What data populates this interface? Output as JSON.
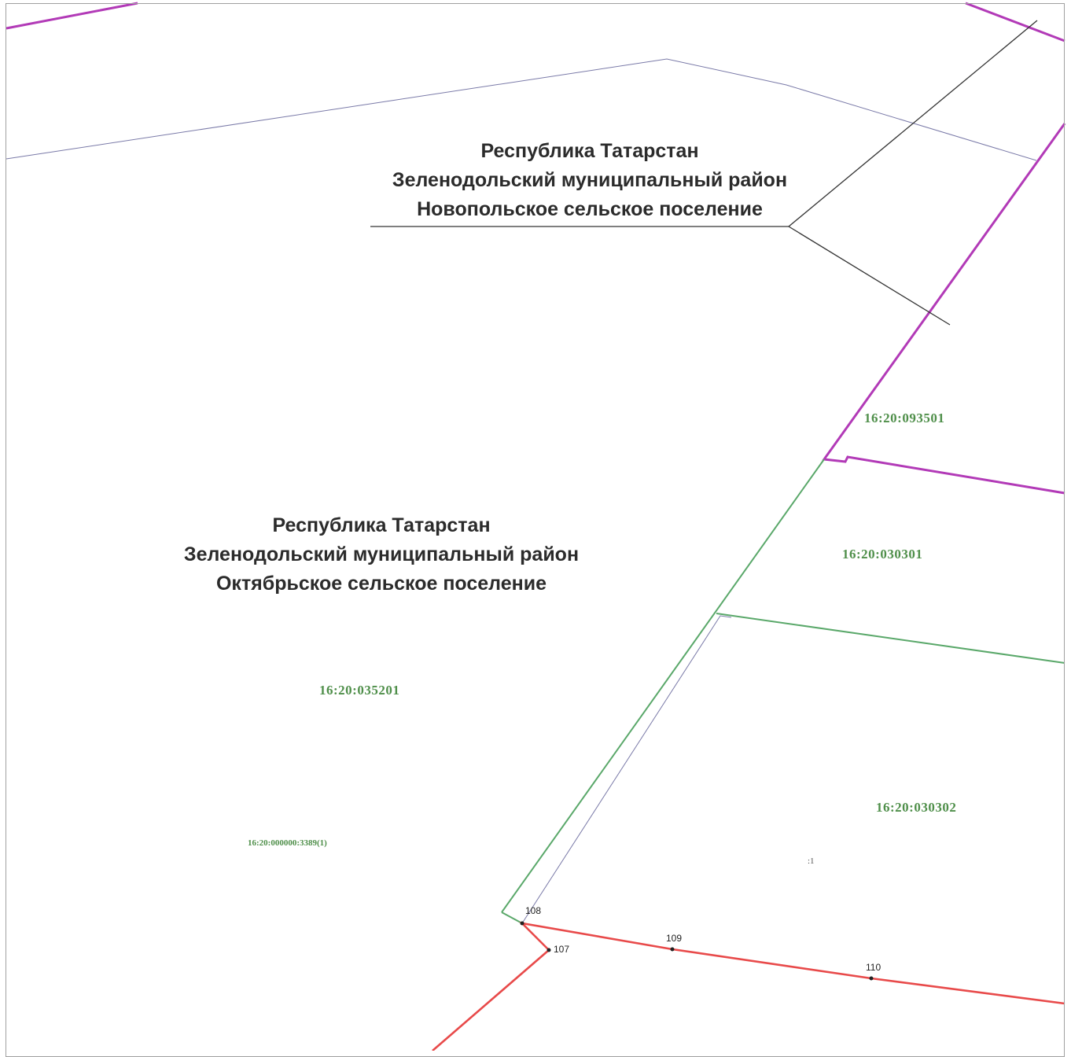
{
  "regions": {
    "novopolskoe": {
      "line1": "Республика Татарстан",
      "line2": "Зеленодольский муниципальный район",
      "line3": "Новопольское сельское поселение"
    },
    "oktyabrskoe": {
      "line1": "Республика Татарстан",
      "line2": "Зеленодольский муниципальный район",
      "line3": "Октябрьское сельское поселение"
    }
  },
  "cadastral_quarters": {
    "q1": "16:20:093501",
    "q2": "16:20:030301",
    "q3": "16:20:035201",
    "q4": "16:20:030302",
    "q5": "16:20:000000:3389(1)"
  },
  "parcel_number": ":1",
  "boundary_points": {
    "p107": "107",
    "p108": "108",
    "p109": "109",
    "p110": "110"
  },
  "colors": {
    "municipal_boundary": "#b23ab7",
    "quarter_boundary": "#5aa86a",
    "parcel_boundary": "#e84a4a",
    "contour_line": "#7a7aa8",
    "callout_line": "#333333",
    "frame": "#a0a0a0"
  }
}
